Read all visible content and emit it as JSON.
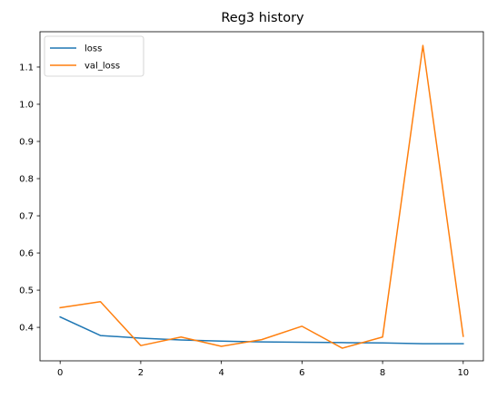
{
  "chart_data": {
    "type": "line",
    "title": "Reg3 history",
    "xlabel": "",
    "ylabel": "",
    "x": [
      0,
      1,
      2,
      3,
      4,
      5,
      6,
      7,
      8,
      9,
      10
    ],
    "xlim": [
      -0.5,
      10.5
    ],
    "ylim": [
      0.31,
      1.195
    ],
    "xticks": [
      0,
      2,
      4,
      6,
      8,
      10
    ],
    "yticks": [
      0.4,
      0.5,
      0.6,
      0.7,
      0.8,
      0.9,
      1.0,
      1.1
    ],
    "xtick_labels": [
      "0",
      "2",
      "4",
      "6",
      "8",
      "10"
    ],
    "ytick_labels": [
      "0.4",
      "0.5",
      "0.6",
      "0.7",
      "0.8",
      "0.9",
      "1.0",
      "1.1"
    ],
    "grid": false,
    "legend_position": "top-left",
    "series": [
      {
        "name": "loss",
        "color": "#1f77b4",
        "values": [
          0.428,
          0.378,
          0.371,
          0.366,
          0.363,
          0.361,
          0.36,
          0.359,
          0.358,
          0.356,
          0.356
        ]
      },
      {
        "name": "val_loss",
        "color": "#ff7f0e",
        "values": [
          0.453,
          0.469,
          0.351,
          0.374,
          0.349,
          0.367,
          0.403,
          0.344,
          0.374,
          1.158,
          0.376
        ]
      }
    ]
  }
}
